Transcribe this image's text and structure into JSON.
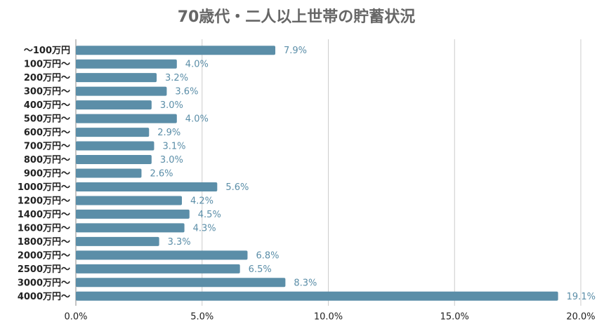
{
  "chart_data": {
    "type": "barh",
    "title": "70歳代・二人以上世帯の貯蓄状況",
    "categories": [
      "～100万円",
      "100万円～",
      "200万円～",
      "300万円～",
      "400万円～",
      "500万円～",
      "600万円～",
      "700万円～",
      "800万円～",
      "900万円～",
      "1000万円～",
      "1200万円～",
      "1400万円～",
      "1600万円～",
      "1800万円～",
      "2000万円～",
      "2500万円～",
      "3000万円～",
      "4000万円～"
    ],
    "values": [
      7.9,
      4.0,
      3.2,
      3.6,
      3.0,
      4.0,
      2.9,
      3.1,
      3.0,
      2.6,
      5.6,
      4.2,
      4.5,
      4.3,
      3.3,
      6.8,
      6.5,
      8.3,
      19.1
    ],
    "value_labels": [
      "7.9%",
      "4.0%",
      "3.2%",
      "3.6%",
      "3.0%",
      "4.0%",
      "2.9%",
      "3.1%",
      "3.0%",
      "2.6%",
      "5.6%",
      "4.2%",
      "4.5%",
      "4.3%",
      "3.3%",
      "6.8%",
      "6.5%",
      "8.3%",
      "19.1%"
    ],
    "color": "#5b8ea8",
    "xlim": [
      0,
      20
    ],
    "xticks": [
      {
        "value": 0,
        "label": "0.0%"
      },
      {
        "value": 5,
        "label": "5.0%"
      },
      {
        "value": 10,
        "label": "10.0%"
      },
      {
        "value": 15,
        "label": "15.0%"
      },
      {
        "value": 20,
        "label": "20.0%"
      }
    ],
    "grid": true
  }
}
